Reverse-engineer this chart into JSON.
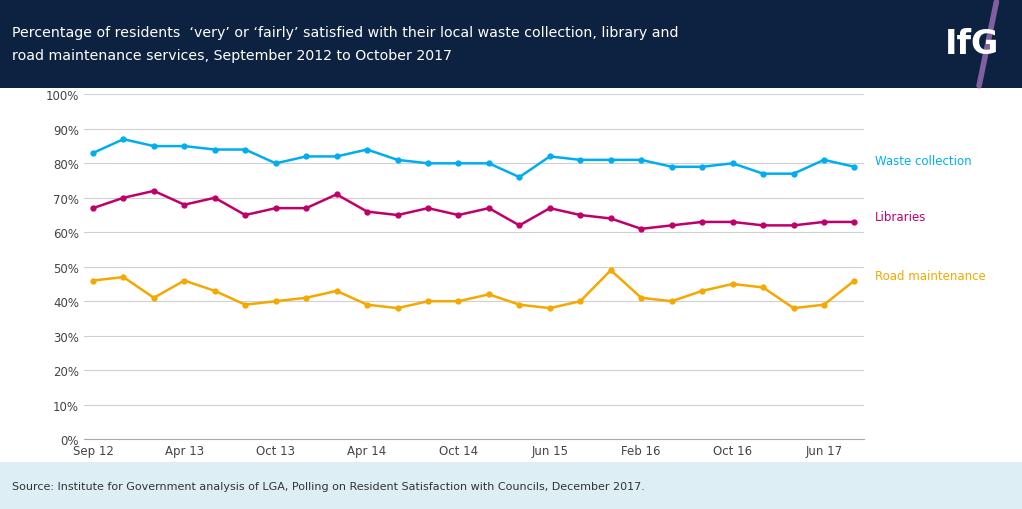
{
  "title_line1": "Percentage of residents  ‘very’ or ‘fairly’ satisfied with their local waste collection, library and",
  "title_line2": "road maintenance services, September 2012 to October 2017",
  "header_bg": "#0d2240",
  "header_text_color": "#ffffff",
  "plot_bg": "#ffffff",
  "grid_color": "#d0d0d0",
  "source_text": "Source: Institute for Government analysis of LGA, Polling on Resident Satisfaction with Councils, December 2017.",
  "footer_bg": "#ddeef5",
  "xtick_labels": [
    "Sep 12",
    "Apr 13",
    "Oct 13",
    "Apr 14",
    "Oct 14",
    "Jun 15",
    "Feb 16",
    "Oct 16",
    "Jun 17"
  ],
  "ytick_labels": [
    "0%",
    "10%",
    "20%",
    "30%",
    "40%",
    "50%",
    "60%",
    "70%",
    "80%",
    "90%",
    "100%"
  ],
  "waste_color": "#00aeef",
  "libraries_color": "#c0006a",
  "road_color": "#f5a800",
  "waste_label": "Waste collection",
  "libraries_label": "Libraries",
  "road_label": "Road maintenance",
  "waste_data": [
    0.83,
    0.87,
    0.85,
    0.85,
    0.84,
    0.84,
    0.8,
    0.82,
    0.82,
    0.84,
    0.81,
    0.8,
    0.8,
    0.8,
    0.76,
    0.82,
    0.81,
    0.81,
    0.81,
    0.79,
    0.79,
    0.8,
    0.77,
    0.77,
    0.81,
    0.79
  ],
  "libraries_data": [
    0.67,
    0.7,
    0.72,
    0.68,
    0.7,
    0.65,
    0.67,
    0.67,
    0.71,
    0.66,
    0.65,
    0.67,
    0.65,
    0.67,
    0.62,
    0.67,
    0.65,
    0.64,
    0.61,
    0.62,
    0.63,
    0.63,
    0.62,
    0.62,
    0.63,
    0.63
  ],
  "road_data": [
    0.46,
    0.47,
    0.41,
    0.46,
    0.43,
    0.39,
    0.4,
    0.41,
    0.43,
    0.39,
    0.38,
    0.4,
    0.4,
    0.42,
    0.39,
    0.38,
    0.4,
    0.49,
    0.41,
    0.4,
    0.43,
    0.45,
    0.44,
    0.38,
    0.39,
    0.46
  ],
  "n_points": 26,
  "x_tick_positions": [
    0,
    3,
    6,
    9,
    12,
    15,
    18,
    21,
    24
  ],
  "ifg_purple_line_color": "#8060a0",
  "cc_box_color": "#3a7fc1"
}
